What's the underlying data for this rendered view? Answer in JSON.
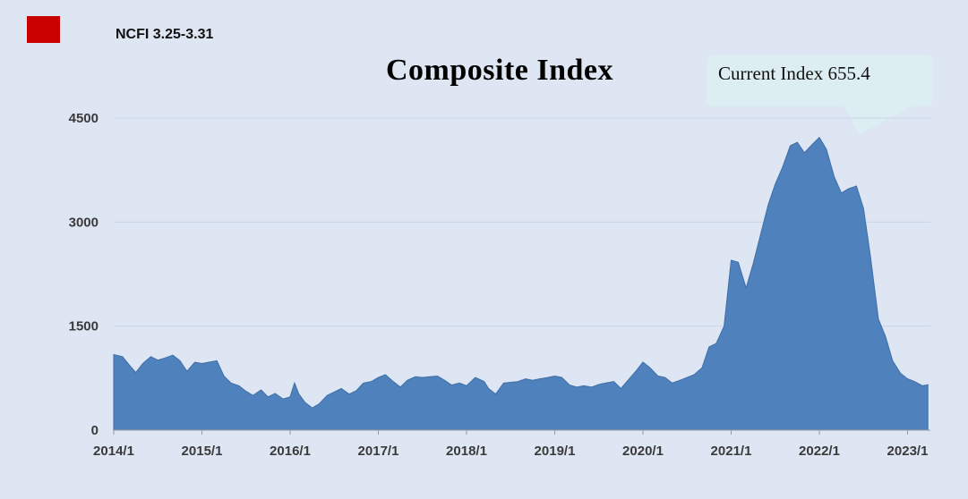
{
  "legend": {
    "label": "NCFI 3.25-3.31",
    "swatch_color": "#c90000"
  },
  "callout": {
    "text": "Current Index 655.4"
  },
  "chart_data": {
    "type": "area",
    "title": "Composite Index",
    "xlabel": "",
    "ylabel": "",
    "ylim": [
      0,
      4500
    ],
    "yticks": [
      0,
      1500,
      3000,
      4500
    ],
    "xticks": [
      "2014/1",
      "2015/1",
      "2016/1",
      "2017/1",
      "2018/1",
      "2019/1",
      "2020/1",
      "2021/1",
      "2022/1",
      "2023/1"
    ],
    "grid": true,
    "fill_color": "#4f81bd",
    "x_unit": "year",
    "series": [
      {
        "values": [
          [
            2014.0,
            1090
          ],
          [
            2014.1,
            1060
          ],
          [
            2014.17,
            950
          ],
          [
            2014.25,
            830
          ],
          [
            2014.33,
            960
          ],
          [
            2014.42,
            1060
          ],
          [
            2014.5,
            1010
          ],
          [
            2014.58,
            1040
          ],
          [
            2014.67,
            1080
          ],
          [
            2014.75,
            1000
          ],
          [
            2014.83,
            850
          ],
          [
            2014.92,
            980
          ],
          [
            2015.0,
            960
          ],
          [
            2015.08,
            980
          ],
          [
            2015.17,
            1000
          ],
          [
            2015.25,
            780
          ],
          [
            2015.33,
            680
          ],
          [
            2015.42,
            640
          ],
          [
            2015.5,
            560
          ],
          [
            2015.58,
            500
          ],
          [
            2015.67,
            580
          ],
          [
            2015.75,
            480
          ],
          [
            2015.83,
            530
          ],
          [
            2015.92,
            450
          ],
          [
            2016.0,
            480
          ],
          [
            2016.05,
            680
          ],
          [
            2016.1,
            520
          ],
          [
            2016.17,
            400
          ],
          [
            2016.25,
            320
          ],
          [
            2016.33,
            380
          ],
          [
            2016.42,
            500
          ],
          [
            2016.5,
            550
          ],
          [
            2016.58,
            600
          ],
          [
            2016.67,
            520
          ],
          [
            2016.75,
            570
          ],
          [
            2016.83,
            680
          ],
          [
            2016.92,
            700
          ],
          [
            2017.0,
            760
          ],
          [
            2017.08,
            800
          ],
          [
            2017.17,
            700
          ],
          [
            2017.25,
            620
          ],
          [
            2017.33,
            720
          ],
          [
            2017.42,
            770
          ],
          [
            2017.5,
            760
          ],
          [
            2017.58,
            770
          ],
          [
            2017.67,
            780
          ],
          [
            2017.75,
            720
          ],
          [
            2017.83,
            650
          ],
          [
            2017.92,
            680
          ],
          [
            2018.0,
            640
          ],
          [
            2018.1,
            760
          ],
          [
            2018.2,
            700
          ],
          [
            2018.25,
            600
          ],
          [
            2018.33,
            520
          ],
          [
            2018.42,
            680
          ],
          [
            2018.5,
            690
          ],
          [
            2018.58,
            700
          ],
          [
            2018.67,
            740
          ],
          [
            2018.75,
            720
          ],
          [
            2018.83,
            740
          ],
          [
            2018.92,
            760
          ],
          [
            2019.0,
            780
          ],
          [
            2019.08,
            760
          ],
          [
            2019.17,
            650
          ],
          [
            2019.25,
            620
          ],
          [
            2019.33,
            640
          ],
          [
            2019.42,
            620
          ],
          [
            2019.5,
            660
          ],
          [
            2019.58,
            680
          ],
          [
            2019.67,
            700
          ],
          [
            2019.75,
            600
          ],
          [
            2019.83,
            720
          ],
          [
            2019.92,
            850
          ],
          [
            2020.0,
            980
          ],
          [
            2020.08,
            900
          ],
          [
            2020.17,
            780
          ],
          [
            2020.25,
            760
          ],
          [
            2020.33,
            680
          ],
          [
            2020.42,
            720
          ],
          [
            2020.5,
            760
          ],
          [
            2020.58,
            800
          ],
          [
            2020.67,
            900
          ],
          [
            2020.75,
            1200
          ],
          [
            2020.83,
            1250
          ],
          [
            2020.92,
            1500
          ],
          [
            2021.0,
            2450
          ],
          [
            2021.08,
            2420
          ],
          [
            2021.17,
            2050
          ],
          [
            2021.25,
            2400
          ],
          [
            2021.33,
            2800
          ],
          [
            2021.42,
            3250
          ],
          [
            2021.5,
            3550
          ],
          [
            2021.58,
            3780
          ],
          [
            2021.67,
            4100
          ],
          [
            2021.75,
            4150
          ],
          [
            2021.83,
            4000
          ],
          [
            2021.92,
            4120
          ],
          [
            2022.0,
            4220
          ],
          [
            2022.08,
            4050
          ],
          [
            2022.17,
            3650
          ],
          [
            2022.25,
            3420
          ],
          [
            2022.33,
            3480
          ],
          [
            2022.42,
            3520
          ],
          [
            2022.5,
            3200
          ],
          [
            2022.58,
            2500
          ],
          [
            2022.67,
            1600
          ],
          [
            2022.75,
            1350
          ],
          [
            2022.83,
            1000
          ],
          [
            2022.92,
            820
          ],
          [
            2023.0,
            740
          ],
          [
            2023.08,
            700
          ],
          [
            2023.17,
            640
          ],
          [
            2023.23,
            655
          ]
        ]
      }
    ]
  }
}
